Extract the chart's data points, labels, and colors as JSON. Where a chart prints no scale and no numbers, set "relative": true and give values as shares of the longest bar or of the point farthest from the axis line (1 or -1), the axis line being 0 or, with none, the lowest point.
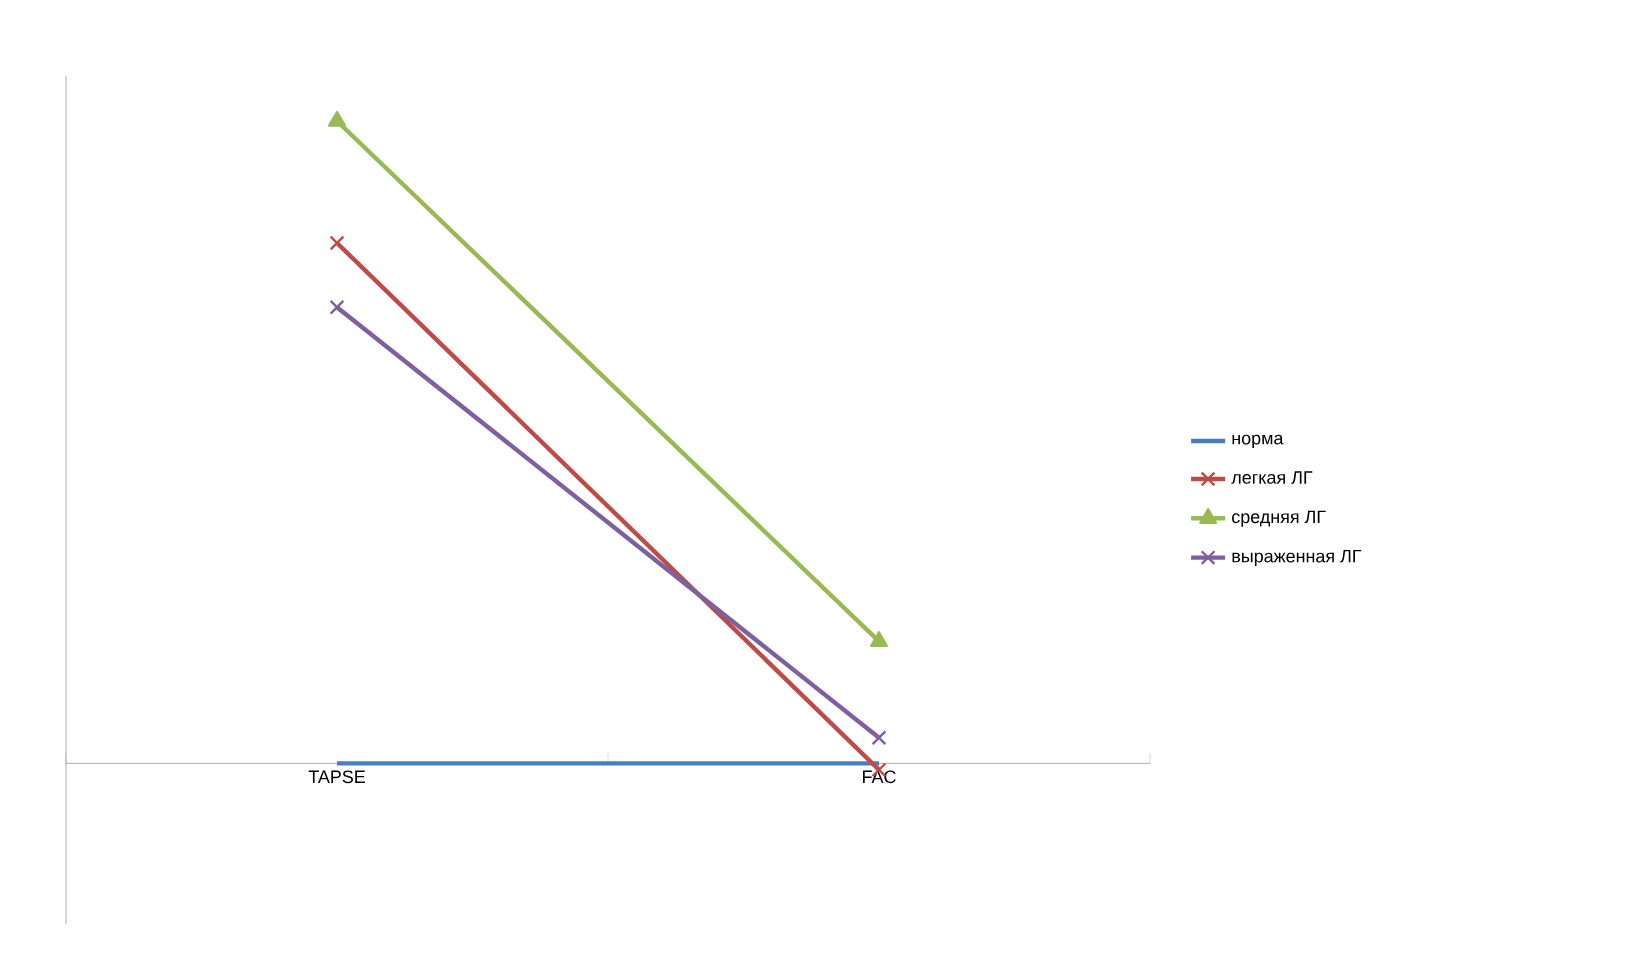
{
  "chart_data": {
    "type": "line",
    "relative": true,
    "categories": [
      "TAPSE",
      "FAC"
    ],
    "legend": "right",
    "series": [
      {
        "name": "норма",
        "color": "#4a7ebb",
        "marker": "none",
        "values": [
          0,
          0
        ]
      },
      {
        "name": "легкая ЛГ",
        "color": "#be4b48",
        "marker": "cross",
        "values": [
          0.81,
          -0.01
        ]
      },
      {
        "name": "средняя ЛГ",
        "color": "#98b954",
        "marker": "triangle",
        "values": [
          1,
          0.19
        ]
      },
      {
        "name": "выраженная ЛГ",
        "color": "#7d60a0",
        "marker": "cross",
        "values": [
          0.71,
          0.04
        ]
      }
    ]
  }
}
